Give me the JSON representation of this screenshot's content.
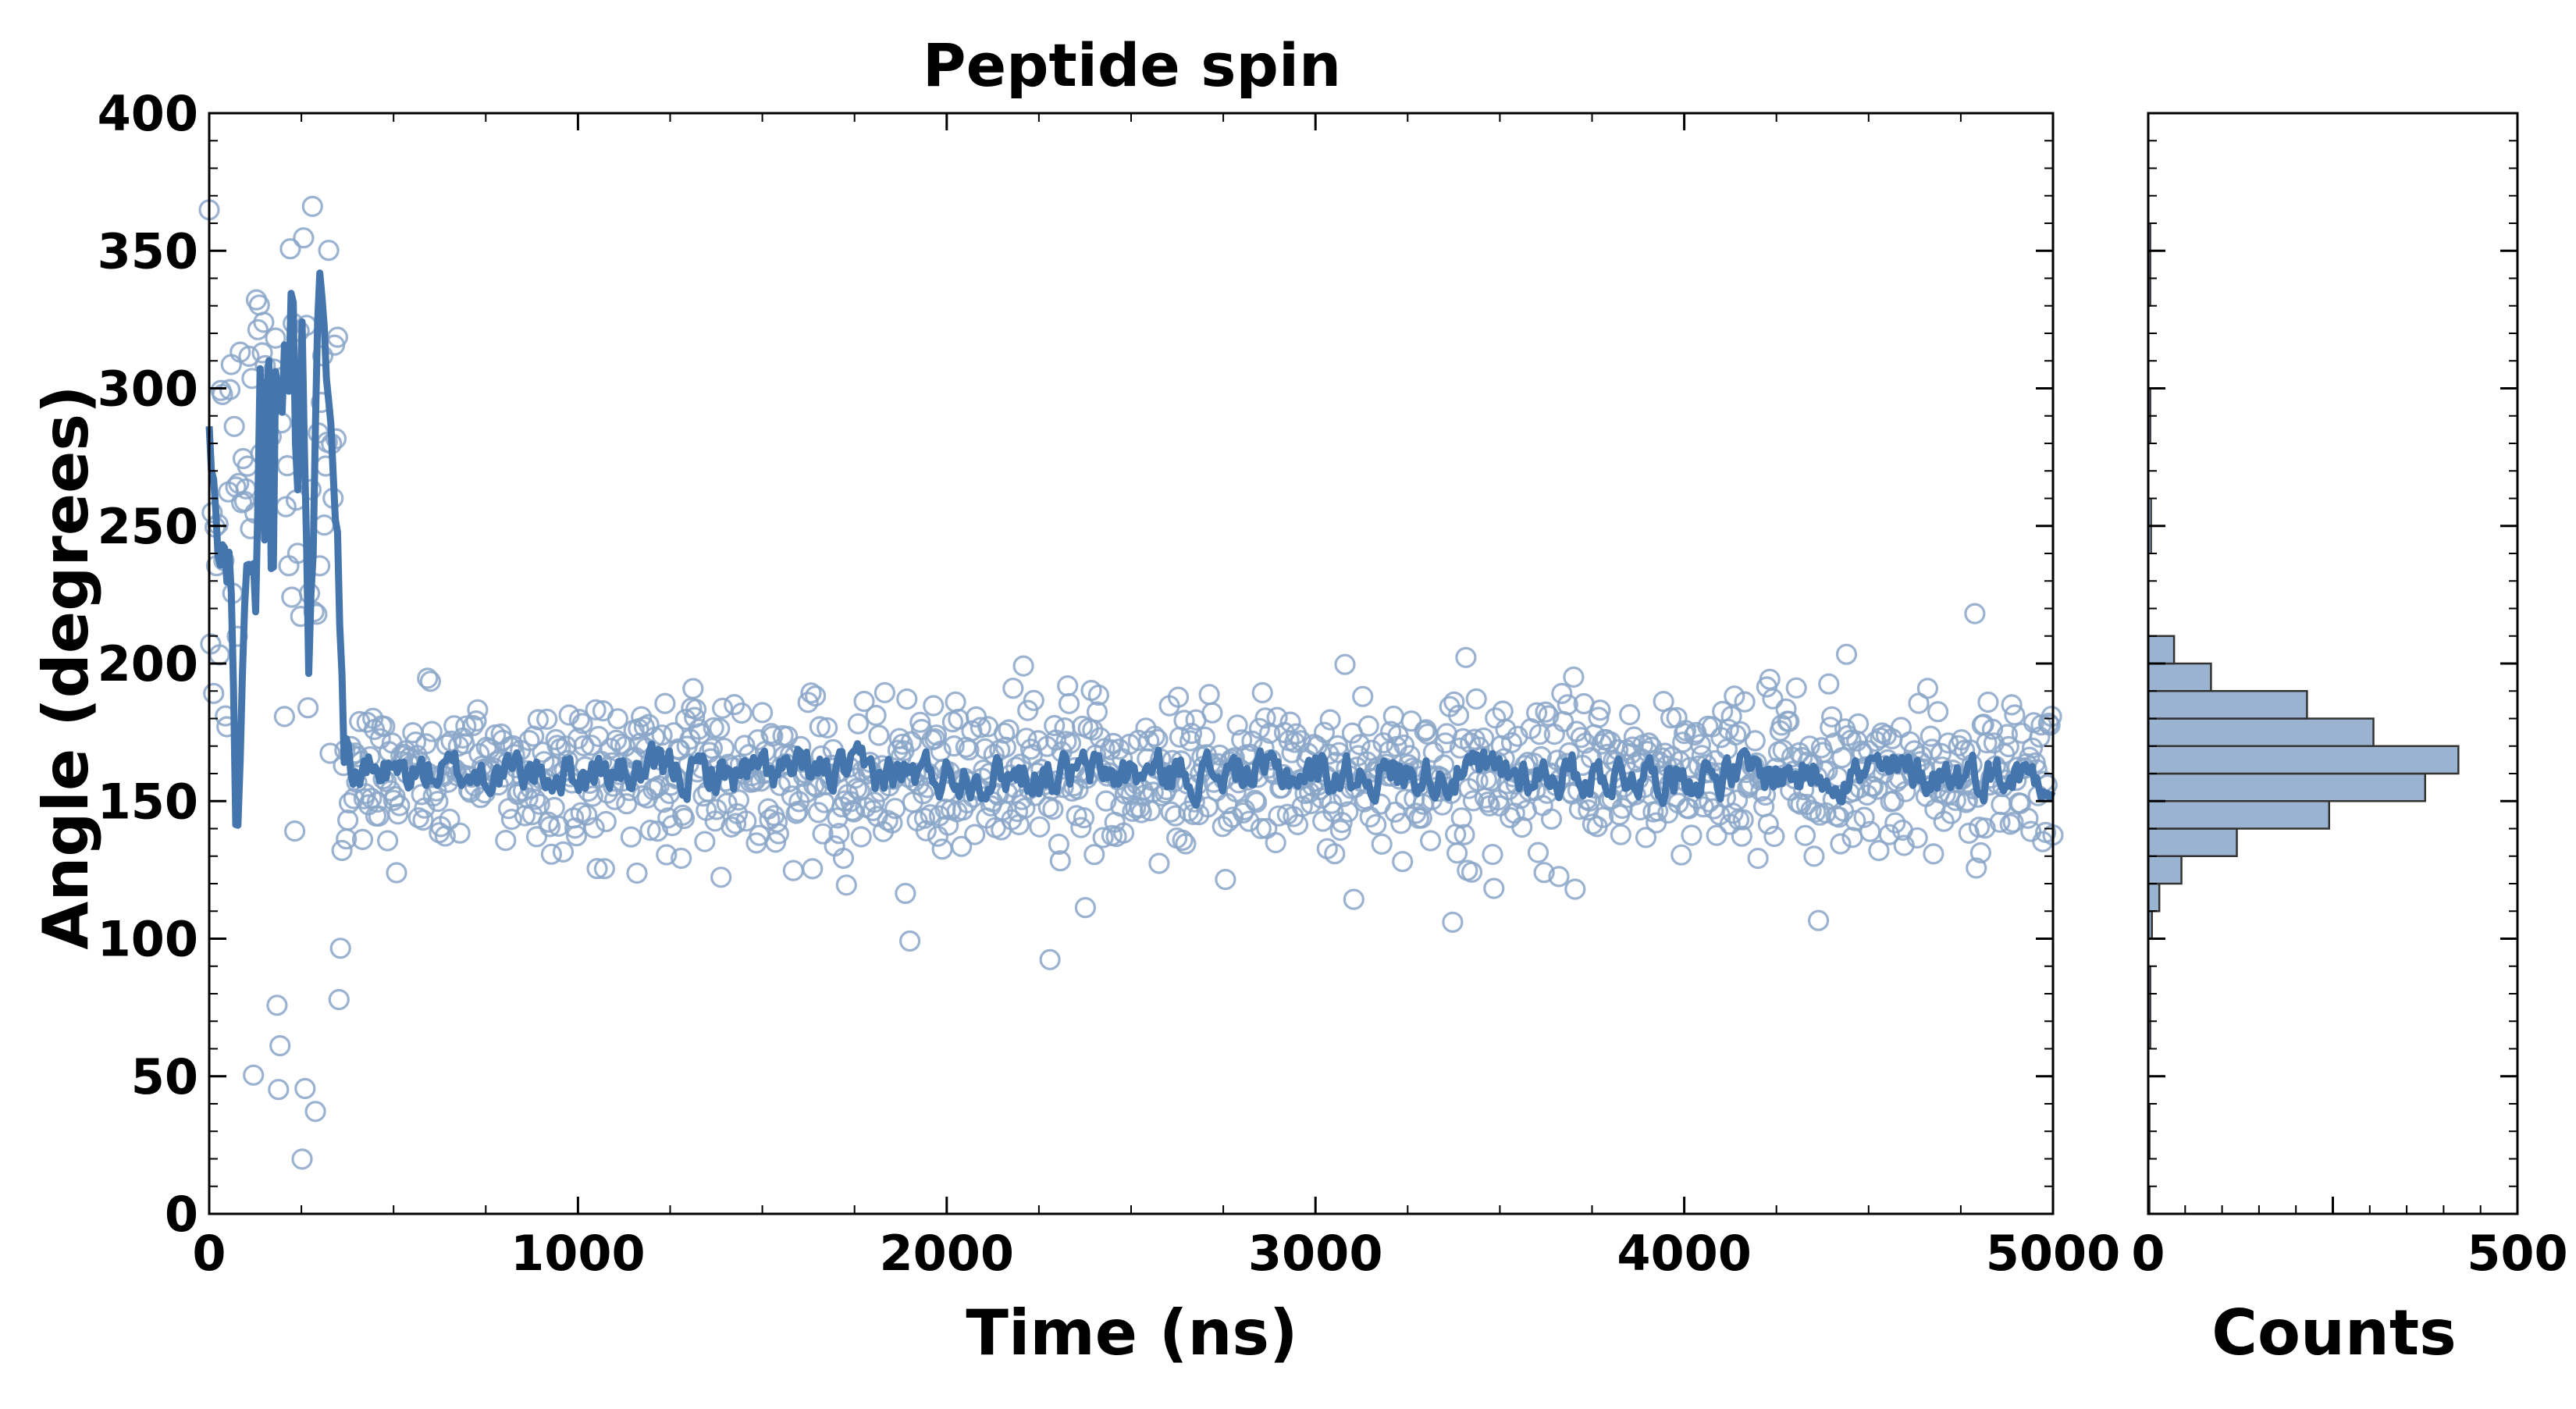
{
  "chart_data": [
    {
      "type": "scatter",
      "title": "Peptide spin",
      "xlabel": "Time (ns)",
      "ylabel": "Angle (degrees)",
      "xlim": [
        0,
        5000
      ],
      "ylim": [
        0,
        400
      ],
      "x_ticks": [
        "0",
        "1000",
        "2000",
        "3000",
        "4000",
        "5000"
      ],
      "y_ticks": [
        "0",
        "50",
        "100",
        "150",
        "200",
        "250",
        "300",
        "350",
        "400"
      ],
      "grid": false,
      "colors": {
        "points": "#8aa6c8",
        "line": "#4575ad"
      },
      "series": [
        {
          "kind": "scatter-open-circles",
          "description_values": "approx. one sample every 4 ns",
          "x_range": [
            0,
            5000
          ]
        },
        {
          "kind": "running-average-line",
          "x_range": [
            0,
            5000
          ]
        }
      ],
      "phases": [
        {
          "x": [
            0,
            80
          ],
          "y_center": 240,
          "spread": 60
        },
        {
          "x": [
            80,
            360
          ],
          "y_center": 290,
          "spread": 70,
          "secondary_low_points": [
            10,
            60
          ]
        },
        {
          "x": [
            360,
            5000
          ],
          "y_center": 160,
          "spread": 15
        }
      ],
      "line_keypoints": [
        [
          0,
          280
        ],
        [
          20,
          250
        ],
        [
          40,
          240
        ],
        [
          60,
          230
        ],
        [
          75,
          120
        ],
        [
          90,
          200
        ],
        [
          110,
          250
        ],
        [
          125,
          215
        ],
        [
          140,
          330
        ],
        [
          150,
          250
        ],
        [
          160,
          345
        ],
        [
          170,
          200
        ],
        [
          180,
          300
        ],
        [
          195,
          280
        ],
        [
          205,
          330
        ],
        [
          215,
          300
        ],
        [
          225,
          340
        ],
        [
          240,
          255
        ],
        [
          250,
          330
        ],
        [
          260,
          270
        ],
        [
          270,
          200
        ],
        [
          280,
          230
        ],
        [
          295,
          330
        ],
        [
          305,
          345
        ],
        [
          320,
          300
        ],
        [
          340,
          270
        ],
        [
          350,
          230
        ],
        [
          365,
          175
        ],
        [
          380,
          160
        ],
        [
          5000,
          160
        ]
      ]
    },
    {
      "type": "bar",
      "orientation": "horizontal",
      "xlabel": "Counts",
      "xlim": [
        0,
        500
      ],
      "ylim": [
        0,
        400
      ],
      "x_ticks": [
        "0",
        "500"
      ],
      "bin_edges": [
        100,
        110,
        120,
        130,
        140,
        150,
        160,
        170,
        180,
        190,
        200,
        210
      ],
      "values": [
        5,
        15,
        45,
        120,
        245,
        375,
        420,
        305,
        215,
        85,
        35,
        10
      ],
      "colors": {
        "fill": "#9ab3d1",
        "edge": "#333333"
      }
    }
  ]
}
